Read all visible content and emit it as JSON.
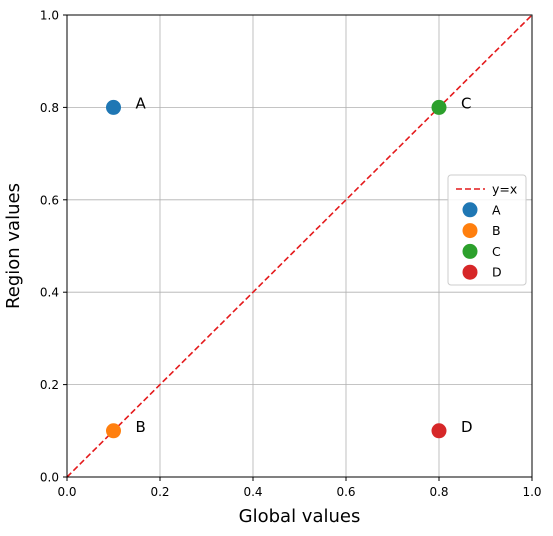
{
  "chart_data": {
    "type": "scatter",
    "title": "",
    "xlabel": "Global values",
    "ylabel": "Region values",
    "xlim": [
      0.0,
      1.0
    ],
    "ylim": [
      0.0,
      1.0
    ],
    "x_ticks": [
      0.0,
      0.2,
      0.4,
      0.6,
      0.8,
      1.0
    ],
    "y_ticks": [
      0.0,
      0.2,
      0.4,
      0.6,
      0.8,
      1.0
    ],
    "x_tick_labels": [
      "0.0",
      "0.2",
      "0.4",
      "0.6",
      "0.8",
      "1.0"
    ],
    "y_tick_labels": [
      "0.0",
      "0.2",
      "0.4",
      "0.6",
      "0.8",
      "1.0"
    ],
    "grid": true,
    "legend_position": "center-right",
    "reference_line": {
      "name": "y=x",
      "x": [
        0.0,
        1.0
      ],
      "y": [
        0.0,
        1.0
      ],
      "color": "#e41a1c",
      "style": "dashed"
    },
    "series": [
      {
        "name": "A",
        "x": 0.1,
        "y": 0.8,
        "color": "#1f77b4",
        "label": "A"
      },
      {
        "name": "B",
        "x": 0.1,
        "y": 0.1,
        "color": "#ff7f0e",
        "label": "B"
      },
      {
        "name": "C",
        "x": 0.8,
        "y": 0.8,
        "color": "#2ca02c",
        "label": "C"
      },
      {
        "name": "D",
        "x": 0.8,
        "y": 0.1,
        "color": "#d62728",
        "label": "D"
      }
    ]
  }
}
